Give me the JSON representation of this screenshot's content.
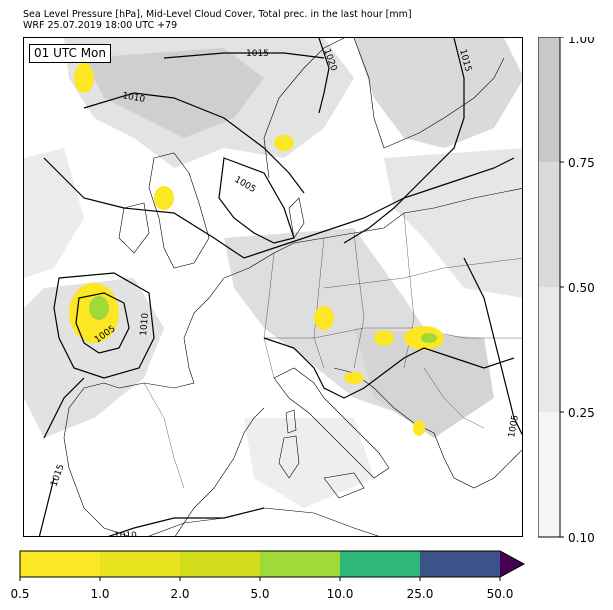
{
  "title": {
    "line1": "Sea Level Pressure [hPa], Mid-Level Cloud Cover, Total prec. in the last hour [mm]",
    "line2": "WRF 25.07.2019 18:00 UTC +79"
  },
  "map": {
    "time_label": "01 UTC Mon",
    "isobar_labels": [
      "1015",
      "1020",
      "1015",
      "1010",
      "1005",
      "1005",
      "1010",
      "1015",
      "1010",
      "1005"
    ]
  },
  "cloud_colorbar": {
    "ticks": [
      "1.00",
      "0.75",
      "0.50",
      "0.25",
      "0.10"
    ],
    "colors": [
      "#c8c8c8",
      "#d9d9d9",
      "#e8e8e8",
      "#f5f5f5"
    ]
  },
  "precip_colorbar": {
    "ticks": [
      "0.5",
      "1.0",
      "2.0",
      "5.0",
      "10.0",
      "25.0",
      "50.0"
    ],
    "colors": [
      "#fde725",
      "#e9e31f",
      "#d2de1c",
      "#a0da39",
      "#30b87a",
      "#3b528b",
      "#440154"
    ]
  },
  "colors": {
    "land_border": "#000000",
    "isobar": "#000000",
    "cloud_light": "#ebebeb",
    "cloud_mid": "#d9d9d9",
    "cloud_dark": "#c8c8c8",
    "precip_yellow": "#fde725",
    "precip_green": "#a0da39"
  }
}
